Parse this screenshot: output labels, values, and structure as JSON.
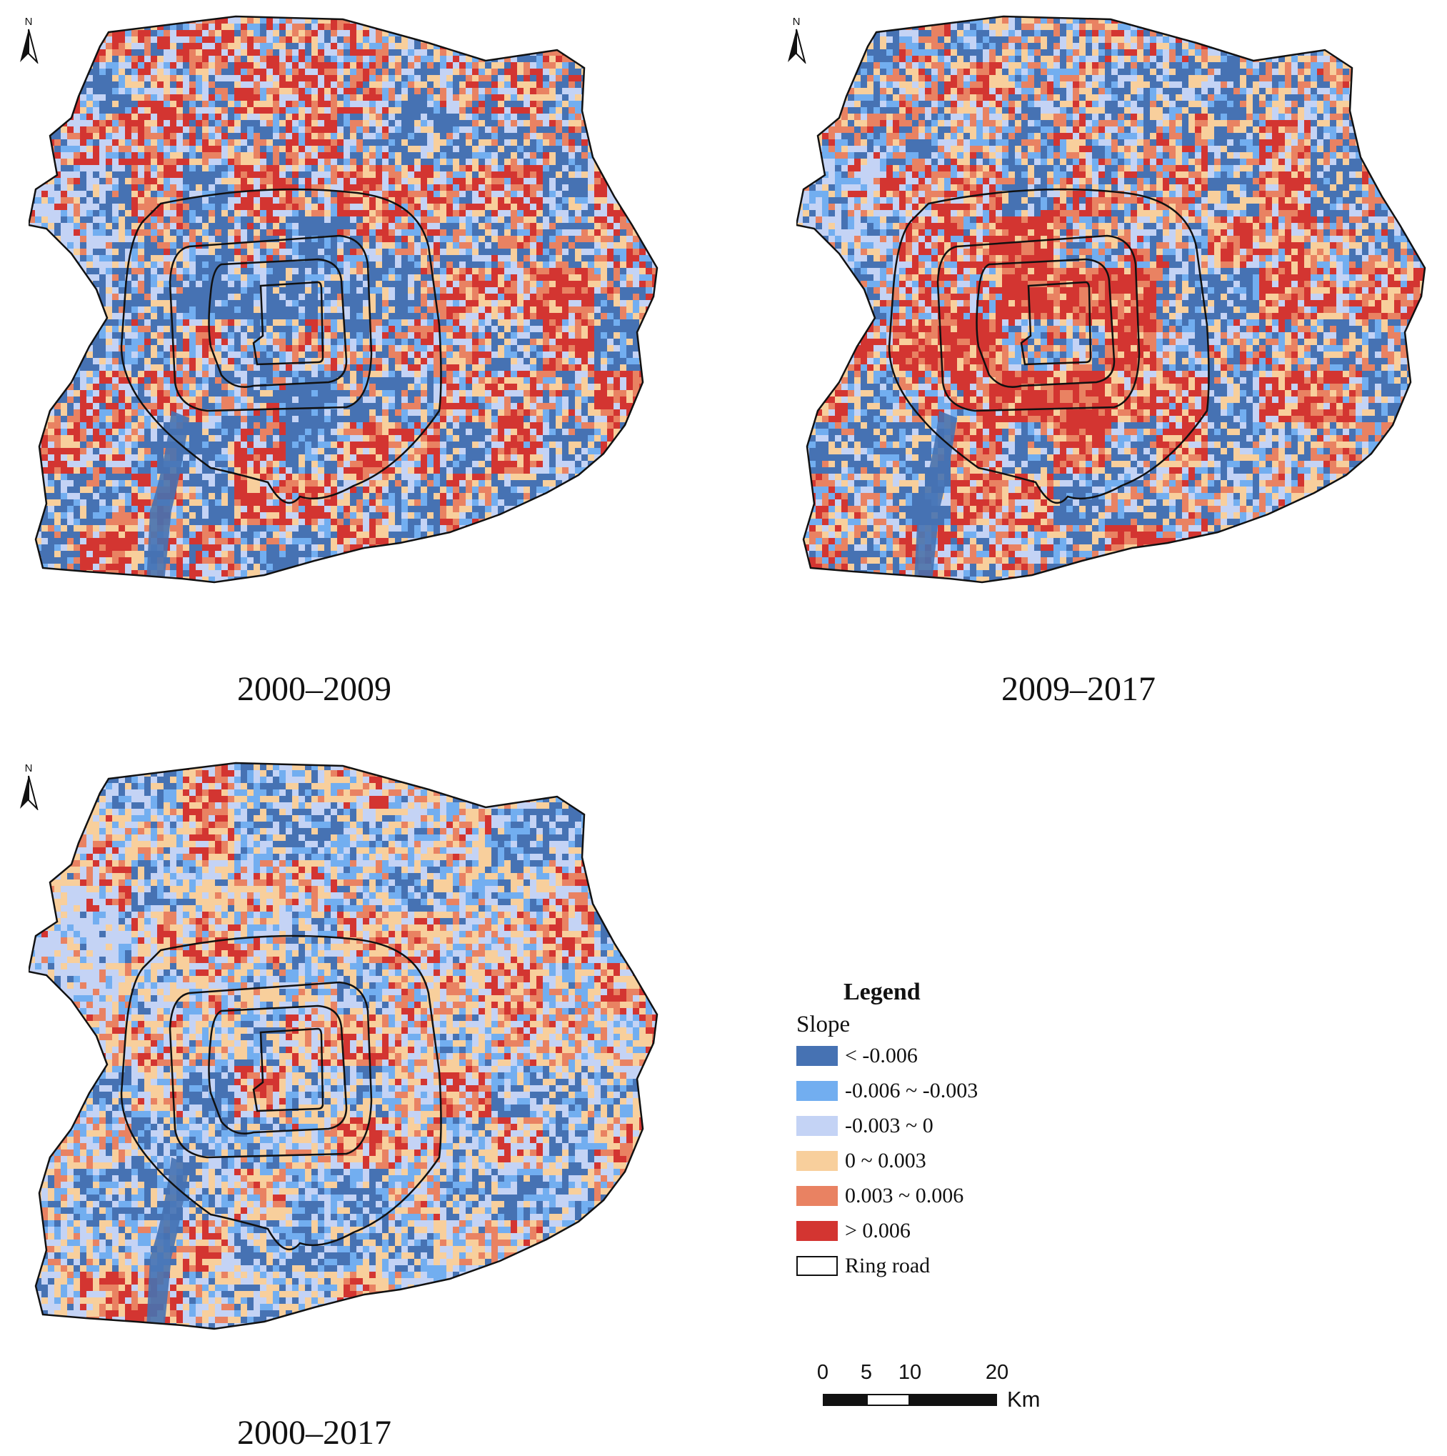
{
  "maps": [
    {
      "id": "p1",
      "caption": "2000–2009",
      "seed": 11,
      "weights": [
        0.34,
        0.07,
        0.09,
        0.08,
        0.1,
        0.32
      ],
      "inner_bias": -0.25
    },
    {
      "id": "p2",
      "caption": "2009–2017",
      "seed": 23,
      "weights": [
        0.33,
        0.09,
        0.08,
        0.09,
        0.13,
        0.28
      ],
      "inner_bias": 0.25
    },
    {
      "id": "p3",
      "caption": "2000–2017",
      "seed": 37,
      "weights": [
        0.28,
        0.12,
        0.14,
        0.16,
        0.11,
        0.19
      ],
      "inner_bias": 0.05
    }
  ],
  "north_arrow": {
    "letter": "N"
  },
  "legend": {
    "title": "Legend",
    "subtitle": "Slope",
    "items": [
      {
        "label": "< -0.006",
        "color": "#4672b3"
      },
      {
        "label": "-0.006 ~ -0.003",
        "color": "#72aef0"
      },
      {
        "label": "-0.003 ~ 0",
        "color": "#c4d3f5"
      },
      {
        "label": "0 ~ 0.003",
        "color": "#f8cf9c"
      },
      {
        "label": "0.003 ~ 0.006",
        "color": "#e98262"
      },
      {
        "label": "> 0.006",
        "color": "#d33531"
      }
    ],
    "ring_road_label": "Ring road"
  },
  "scale_bar": {
    "labels": [
      "0",
      "5",
      "10",
      "20"
    ],
    "unit": "Km"
  }
}
